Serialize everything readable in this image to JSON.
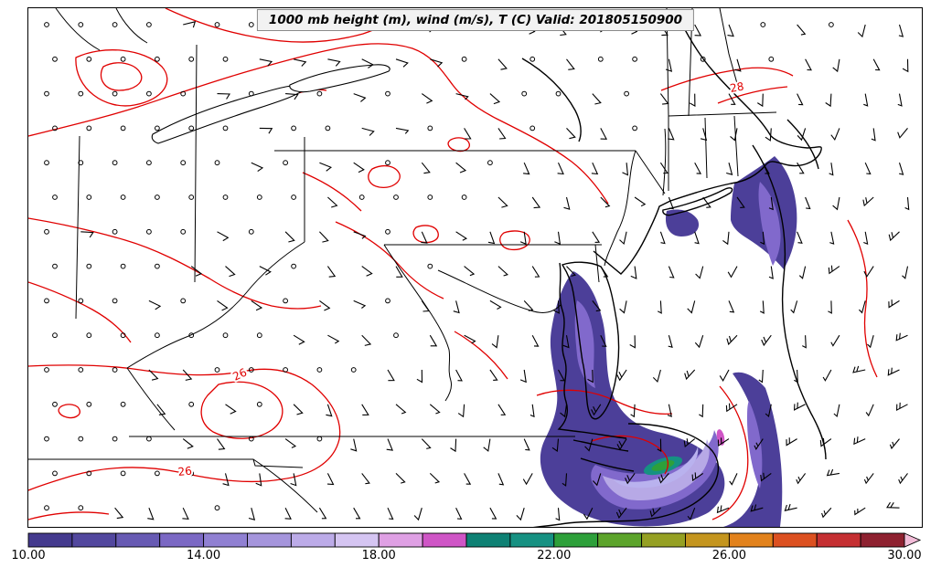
{
  "title": "1000 mb height (m), wind (m/s), T (C) Valid: 201805150900",
  "chart_data": {
    "type": "contour-map",
    "title": "1000 mb height (m), wind (m/s), T (C) Valid: 201805150900",
    "valid_time": "201805150900",
    "region": "Northeastern / Mid-Atlantic United States and adjacent Atlantic",
    "fields": [
      {
        "name": "1000 mb height (m)",
        "style": "black contour lines",
        "color": "#000000"
      },
      {
        "name": "wind (m/s)",
        "style": "wind barbs and filled color shading (see colorbar)",
        "color": "#000000"
      },
      {
        "name": "T (C)",
        "style": "red contour lines",
        "color": "#e00000",
        "labeled_values": [
          26,
          28
        ]
      }
    ],
    "contour_labels": [
      {
        "value": "28",
        "color": "#e00000"
      },
      {
        "value": "26",
        "color": "#e00000"
      },
      {
        "value": "26",
        "color": "#e00000"
      }
    ],
    "colorbar": {
      "min": 10,
      "max": 30,
      "ticks": [
        "10.00",
        "14.00",
        "18.00",
        "22.00",
        "26.00",
        "30.00"
      ],
      "tick_values": [
        10,
        14,
        18,
        22,
        26,
        30
      ],
      "overflow_color": "#f2bcd8",
      "segments": [
        {
          "from": 10,
          "to": 11,
          "color": "#443a8e"
        },
        {
          "from": 11,
          "to": 12,
          "color": "#52479e"
        },
        {
          "from": 12,
          "to": 13,
          "color": "#675ab3"
        },
        {
          "from": 13,
          "to": 14,
          "color": "#7b68c4"
        },
        {
          "from": 14,
          "to": 15,
          "color": "#9080d2"
        },
        {
          "from": 15,
          "to": 16,
          "color": "#a595dc"
        },
        {
          "from": 16,
          "to": 17,
          "color": "#bcabe8"
        },
        {
          "from": 17,
          "to": 18,
          "color": "#d5c5f2"
        },
        {
          "from": 18,
          "to": 19,
          "color": "#dfa0e4"
        },
        {
          "from": 19,
          "to": 20,
          "color": "#cf55c6"
        },
        {
          "from": 20,
          "to": 21,
          "color": "#0e8174"
        },
        {
          "from": 21,
          "to": 22,
          "color": "#169182"
        },
        {
          "from": 22,
          "to": 23,
          "color": "#2da03a"
        },
        {
          "from": 23,
          "to": 24,
          "color": "#5ca42b"
        },
        {
          "from": 24,
          "to": 25,
          "color": "#95a023"
        },
        {
          "from": 25,
          "to": 26,
          "color": "#c4951e"
        },
        {
          "from": 26,
          "to": 27,
          "color": "#e2821c"
        },
        {
          "from": 27,
          "to": 28,
          "color": "#dc5020"
        },
        {
          "from": 28,
          "to": 29,
          "color": "#c52f32"
        },
        {
          "from": 29,
          "to": 30,
          "color": "#8e2130"
        }
      ]
    }
  }
}
